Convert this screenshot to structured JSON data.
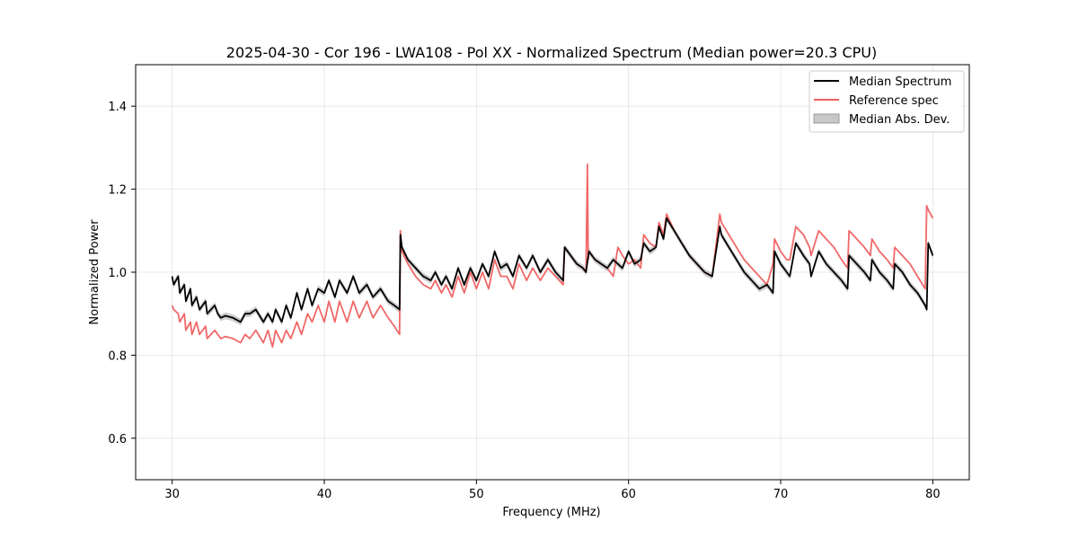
{
  "chart_data": {
    "type": "line",
    "title": "2025-04-30 - Cor 196 - LWA108 - Pol XX - Normalized Spectrum (Median power=20.3 CPU)",
    "xlabel": "Frequency (MHz)",
    "ylabel": "Normalized Power",
    "xlim": [
      27.6,
      82.4
    ],
    "ylim": [
      0.5,
      1.5
    ],
    "xticks": [
      30,
      40,
      50,
      60,
      70,
      80
    ],
    "yticks": [
      0.6,
      0.8,
      1.0,
      1.2,
      1.4
    ],
    "xtick_labels": [
      "30",
      "40",
      "50",
      "60",
      "70",
      "80"
    ],
    "ytick_labels": [
      "0.6",
      "0.8",
      "1.0",
      "1.2",
      "1.4"
    ],
    "grid": true,
    "legend_position": "top-right",
    "series": [
      {
        "name": "Median Spectrum",
        "color": "#000000",
        "x": [
          30.0,
          30.1,
          30.4,
          30.5,
          30.8,
          30.9,
          31.2,
          31.3,
          31.6,
          31.8,
          32.2,
          32.3,
          32.8,
          33.0,
          33.2,
          33.5,
          34.0,
          34.5,
          34.8,
          35.1,
          35.5,
          36.0,
          36.3,
          36.6,
          36.8,
          37.2,
          37.5,
          37.8,
          38.2,
          38.5,
          38.9,
          39.2,
          39.6,
          40.0,
          40.3,
          40.7,
          41.0,
          41.5,
          41.9,
          42.3,
          42.8,
          43.2,
          43.7,
          44.2,
          44.6,
          44.95,
          45.0,
          45.1,
          45.5,
          46.0,
          46.5,
          47.0,
          47.3,
          47.7,
          48.0,
          48.4,
          48.8,
          49.2,
          49.6,
          50.0,
          50.4,
          50.8,
          51.2,
          51.6,
          52.0,
          52.4,
          52.8,
          53.3,
          53.7,
          54.2,
          54.7,
          55.2,
          55.7,
          55.8,
          56.2,
          56.6,
          57.0,
          57.2,
          57.4,
          57.8,
          58.2,
          58.6,
          59.0,
          59.3,
          59.6,
          60.0,
          60.4,
          60.8,
          61.0,
          61.4,
          61.8,
          62.0,
          62.3,
          62.5,
          63.0,
          63.5,
          64.0,
          64.5,
          65.0,
          65.5,
          66.0,
          66.1,
          66.6,
          67.1,
          67.6,
          68.1,
          68.6,
          69.1,
          69.5,
          69.6,
          70.0,
          70.4,
          70.6,
          71.0,
          71.5,
          71.9,
          72.0,
          72.5,
          73.0,
          73.5,
          74.0,
          74.4,
          74.5,
          75.0,
          75.5,
          75.9,
          76.0,
          76.5,
          77.0,
          77.4,
          77.5,
          78.0,
          78.5,
          79.0,
          79.5,
          79.6,
          79.7,
          80.0
        ],
        "values": [
          0.99,
          0.97,
          0.99,
          0.95,
          0.97,
          0.93,
          0.96,
          0.92,
          0.94,
          0.91,
          0.93,
          0.9,
          0.92,
          0.9,
          0.89,
          0.895,
          0.89,
          0.88,
          0.9,
          0.9,
          0.91,
          0.88,
          0.9,
          0.88,
          0.91,
          0.88,
          0.92,
          0.89,
          0.95,
          0.91,
          0.96,
          0.92,
          0.96,
          0.95,
          0.98,
          0.94,
          0.98,
          0.95,
          0.99,
          0.95,
          0.97,
          0.94,
          0.96,
          0.93,
          0.92,
          0.91,
          1.09,
          1.06,
          1.03,
          1.01,
          0.99,
          0.98,
          1.0,
          0.97,
          0.99,
          0.96,
          1.01,
          0.97,
          1.01,
          0.98,
          1.02,
          0.99,
          1.05,
          1.01,
          1.02,
          0.99,
          1.04,
          1.01,
          1.04,
          1.0,
          1.03,
          1.0,
          0.98,
          1.06,
          1.04,
          1.02,
          1.01,
          1.0,
          1.05,
          1.03,
          1.02,
          1.01,
          1.03,
          1.02,
          1.01,
          1.05,
          1.02,
          1.03,
          1.07,
          1.05,
          1.06,
          1.11,
          1.08,
          1.13,
          1.1,
          1.07,
          1.04,
          1.02,
          1.0,
          0.99,
          1.11,
          1.09,
          1.06,
          1.03,
          1.0,
          0.98,
          0.96,
          0.97,
          0.95,
          1.05,
          1.02,
          1.0,
          0.99,
          1.07,
          1.04,
          1.02,
          0.99,
          1.05,
          1.02,
          1.0,
          0.98,
          0.96,
          1.04,
          1.02,
          1.0,
          0.98,
          1.03,
          1.0,
          0.98,
          0.96,
          1.02,
          1.0,
          0.97,
          0.95,
          0.92,
          0.91,
          1.07,
          1.04
        ]
      },
      {
        "name": "Reference spec",
        "color": "#f06060",
        "x": [
          30.0,
          30.1,
          30.4,
          30.5,
          30.8,
          30.9,
          31.2,
          31.3,
          31.6,
          31.8,
          32.2,
          32.3,
          32.8,
          33.0,
          33.2,
          33.5,
          34.0,
          34.5,
          34.8,
          35.1,
          35.5,
          36.0,
          36.3,
          36.6,
          36.8,
          37.2,
          37.5,
          37.8,
          38.2,
          38.5,
          38.9,
          39.2,
          39.6,
          40.0,
          40.3,
          40.7,
          41.0,
          41.5,
          41.9,
          42.3,
          42.8,
          43.2,
          43.7,
          44.2,
          44.6,
          44.95,
          45.0,
          45.1,
          45.5,
          46.0,
          46.5,
          47.0,
          47.3,
          47.7,
          48.0,
          48.4,
          48.8,
          49.2,
          49.6,
          50.0,
          50.4,
          50.8,
          51.2,
          51.6,
          52.0,
          52.4,
          52.8,
          53.3,
          53.7,
          54.2,
          54.7,
          55.2,
          55.7,
          55.8,
          56.2,
          56.6,
          57.0,
          57.2,
          57.3,
          57.35,
          57.4,
          57.8,
          58.2,
          58.6,
          59.0,
          59.3,
          59.6,
          60.0,
          60.4,
          60.8,
          61.0,
          61.4,
          61.8,
          62.0,
          62.3,
          62.5,
          63.0,
          63.5,
          64.0,
          64.5,
          65.0,
          65.5,
          66.0,
          66.1,
          66.6,
          67.1,
          67.6,
          68.1,
          68.6,
          69.1,
          69.5,
          69.6,
          70.0,
          70.4,
          70.6,
          71.0,
          71.5,
          71.9,
          72.0,
          72.5,
          73.0,
          73.5,
          74.0,
          74.4,
          74.5,
          75.0,
          75.5,
          75.9,
          76.0,
          76.5,
          77.0,
          77.4,
          77.5,
          78.0,
          78.5,
          79.0,
          79.5,
          79.6,
          79.7,
          80.0
        ],
        "values": [
          0.92,
          0.91,
          0.9,
          0.88,
          0.9,
          0.86,
          0.88,
          0.85,
          0.88,
          0.85,
          0.87,
          0.84,
          0.86,
          0.85,
          0.84,
          0.845,
          0.84,
          0.83,
          0.85,
          0.84,
          0.86,
          0.83,
          0.86,
          0.82,
          0.86,
          0.83,
          0.86,
          0.84,
          0.88,
          0.85,
          0.9,
          0.88,
          0.92,
          0.88,
          0.93,
          0.88,
          0.93,
          0.88,
          0.93,
          0.89,
          0.93,
          0.89,
          0.92,
          0.89,
          0.87,
          0.85,
          1.1,
          1.05,
          1.02,
          0.99,
          0.97,
          0.96,
          0.98,
          0.95,
          0.97,
          0.94,
          0.99,
          0.95,
          1.0,
          0.96,
          1.0,
          0.96,
          1.03,
          0.99,
          0.99,
          0.96,
          1.02,
          0.98,
          1.01,
          0.98,
          1.01,
          0.99,
          0.97,
          1.06,
          1.04,
          1.02,
          1.01,
          1.0,
          1.26,
          1.03,
          1.05,
          1.03,
          1.02,
          1.01,
          0.99,
          1.06,
          1.04,
          1.02,
          1.03,
          1.01,
          1.09,
          1.07,
          1.06,
          1.12,
          1.09,
          1.14,
          1.1,
          1.07,
          1.04,
          1.02,
          1.0,
          0.99,
          1.14,
          1.12,
          1.09,
          1.06,
          1.03,
          1.01,
          0.99,
          0.97,
          1.02,
          1.08,
          1.05,
          1.03,
          1.03,
          1.11,
          1.09,
          1.06,
          1.04,
          1.1,
          1.08,
          1.06,
          1.03,
          1.01,
          1.1,
          1.08,
          1.06,
          1.04,
          1.08,
          1.05,
          1.03,
          1.01,
          1.06,
          1.04,
          1.02,
          0.99,
          0.96,
          1.16,
          1.15,
          1.13
        ]
      }
    ],
    "band": {
      "name": "Median Abs. Dev.",
      "color": "#c8c8c8",
      "series_ref": 0,
      "halfwidth": 0.008
    }
  }
}
